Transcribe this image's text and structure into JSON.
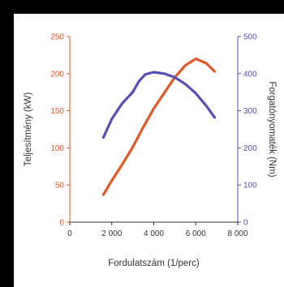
{
  "chart_data": {
    "type": "line",
    "title": "",
    "xlabel": "Fordulatszám (1/perc)",
    "ylabel_left": "Teljesítmény (kW)",
    "ylabel_right": "Forgatónyomaték (Nm)",
    "xlim": [
      0,
      8000
    ],
    "ylim_left": [
      0,
      250
    ],
    "ylim_right": [
      0,
      500
    ],
    "x_ticks": [
      0,
      2000,
      4000,
      6000,
      8000
    ],
    "x_tick_labels": [
      "0",
      "2 000",
      "4 000",
      "6 000",
      "8 000"
    ],
    "y_left_ticks": [
      0,
      50,
      100,
      150,
      200,
      250
    ],
    "y_left_tick_labels": [
      "0",
      "50",
      "100",
      "150",
      "200",
      "250"
    ],
    "y_right_ticks": [
      0,
      100,
      200,
      300,
      400,
      500
    ],
    "y_right_tick_labels": [
      "0",
      "100",
      "200",
      "300",
      "400",
      "500"
    ],
    "grid": false,
    "series": [
      {
        "axis": "left",
        "color": "#e05a2a",
        "x": [
          1600,
          2000,
          2500,
          3000,
          3500,
          4000,
          4500,
          5000,
          5500,
          6000,
          6500,
          6900
        ],
        "y": [
          37,
          56,
          78,
          101,
          128,
          153,
          174,
          195,
          211,
          220,
          214,
          203
        ]
      },
      {
        "axis": "right",
        "color": "#5850b3",
        "x": [
          1600,
          2000,
          2500,
          3000,
          3300,
          3600,
          4000,
          4500,
          5000,
          5500,
          6000,
          6500,
          6900
        ],
        "y": [
          228,
          278,
          320,
          350,
          380,
          398,
          404,
          400,
          390,
          372,
          347,
          313,
          282
        ]
      }
    ]
  }
}
